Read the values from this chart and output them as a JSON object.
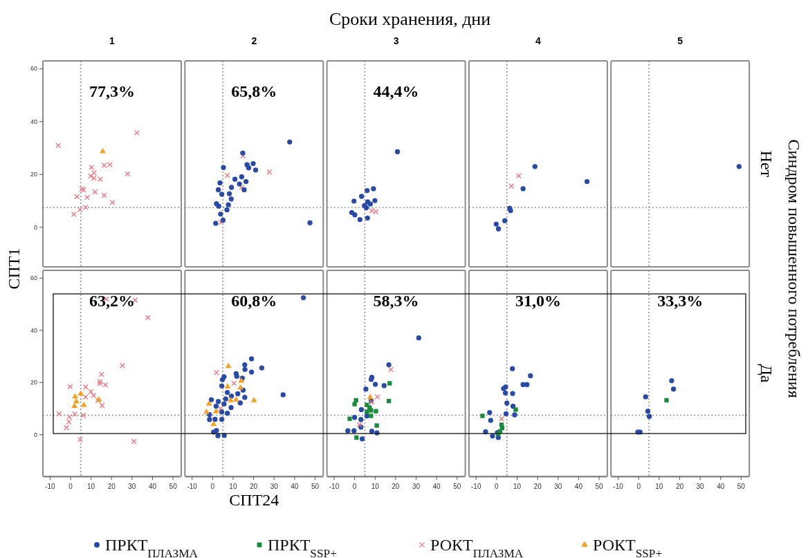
{
  "chart_data": [
    {
      "type": "scatter",
      "title": "1",
      "ylabel": "СПТ1",
      "annotations": [
        "77,3%"
      ],
      "xlim": [
        -13.5,
        54
      ],
      "ylim": [
        -15,
        63
      ],
      "yticks": [
        0,
        20,
        40,
        60
      ],
      "tick_labels": "y",
      "ref_lines": [
        {
          "axis": "x",
          "value": 5,
          "color": "#808080",
          "line_style": "dotted"
        },
        {
          "axis": "y",
          "value": 7.5,
          "color": "#808080",
          "line_style": "dotted"
        }
      ],
      "series": [
        {
          "color": "#f07880",
          "marker": "cross",
          "x": [
            -6,
            32.4,
            10.2,
            16.4,
            19.2,
            27.8,
            11.4,
            9.8,
            11.4,
            14.5,
            5.5,
            6.3,
            11.9,
            16.4,
            3.1,
            8.1,
            20.4,
            7.3,
            4.6,
            1.6
          ],
          "values": [
            31,
            35.8,
            22.7,
            23.4,
            23.7,
            20.2,
            20.6,
            19.4,
            18.6,
            18.2,
            14.5,
            14.2,
            13.4,
            12.1,
            11.6,
            11.3,
            9.4,
            7.5,
            6.7,
            4.9
          ]
        },
        {
          "color": "#f5a020",
          "marker": "triangle",
          "x": [
            15.7
          ],
          "values": [
            28.7
          ]
        }
      ]
    },
    {
      "type": "scatter",
      "title": "2",
      "annotations": [
        "65,8%"
      ],
      "xlim": [
        -13.5,
        54
      ],
      "ylim": [
        -15,
        63
      ],
      "tick_labels": false,
      "ref_lines": [
        {
          "axis": "x",
          "value": 5,
          "color": "#808080",
          "line_style": "dotted"
        },
        {
          "axis": "y",
          "value": 7.5,
          "color": "#808080",
          "line_style": "dotted"
        }
      ],
      "series": [
        {
          "color": "#f07880",
          "marker": "cross",
          "x": [
            27.7,
            7.2,
            14.2,
            4.1,
            14.9
          ],
          "values": [
            20.9,
            19.6,
            15.1,
            1.9,
            27
          ]
        },
        {
          "color": "#2a4aa8",
          "marker": "circle",
          "x": [
            37.6,
            47.5,
            14.7,
            5.3,
            16.8,
            19.8,
            17.6,
            21,
            10.9,
            14.2,
            16.3,
            13.1,
            15.4,
            3.6,
            2.8,
            4.5,
            9.2,
            8.2,
            9.1,
            1.9,
            3,
            7.7,
            7,
            3.9,
            5.1,
            1.5
          ],
          "values": [
            32.3,
            1.7,
            28.1,
            22.6,
            23.7,
            24.1,
            22.5,
            21.7,
            18.2,
            19.1,
            17.3,
            16.4,
            14.2,
            16.8,
            14.2,
            12.5,
            15.1,
            12.7,
            10.7,
            8.9,
            8,
            8.5,
            6.6,
            5,
            2.7,
            1.5
          ]
        }
      ]
    },
    {
      "type": "scatter",
      "title": "3",
      "subtitle": "Сроки хранения, дни",
      "annotations": [
        "44,4%"
      ],
      "xlim": [
        -13.5,
        54
      ],
      "ylim": [
        -15,
        63
      ],
      "tick_labels": false,
      "ref_lines": [
        {
          "axis": "x",
          "value": 5,
          "color": "#808080",
          "line_style": "dotted"
        },
        {
          "axis": "y",
          "value": 7.5,
          "color": "#808080",
          "line_style": "dotted"
        }
      ],
      "series": [
        {
          "color": "#f07880",
          "marker": "cross",
          "x": [
            8.4,
            10.4
          ],
          "values": [
            6.3,
            5.9
          ]
        },
        {
          "color": "#2a4aa8",
          "marker": "circle",
          "x": [
            20.9,
            9.2,
            6.1,
            3.4,
            -0.3,
            9.9,
            6.4,
            7.7,
            4.8,
            5.7,
            -1.4,
            0.1,
            2.6,
            6.3
          ],
          "values": [
            28.6,
            14.6,
            13.9,
            11.7,
            9.9,
            10.1,
            9.6,
            8.8,
            8.2,
            7.4,
            5.6,
            4.7,
            2.9,
            3.5
          ]
        }
      ]
    },
    {
      "type": "scatter",
      "title": "4",
      "xlim": [
        -13.5,
        54
      ],
      "ylim": [
        -15,
        63
      ],
      "tick_labels": false,
      "ref_lines": [
        {
          "axis": "x",
          "value": 5,
          "color": "#808080",
          "line_style": "dotted"
        },
        {
          "axis": "y",
          "value": 7.5,
          "color": "#808080",
          "line_style": "dotted"
        }
      ],
      "series": [
        {
          "color": "#f07880",
          "marker": "cross",
          "x": [
            10.8,
            7.2
          ],
          "values": [
            19.5,
            15.6
          ]
        },
        {
          "color": "#2a4aa8",
          "marker": "circle",
          "x": [
            18.7,
            44.1,
            12.9,
            6.4,
            6.8,
            4,
            -0.2,
            0.9
          ],
          "values": [
            23,
            17.3,
            14.6,
            7.2,
            6.3,
            2.5,
            1.2,
            -0.6
          ]
        }
      ]
    },
    {
      "type": "scatter",
      "title": "5",
      "y2label": "Нет",
      "xlim": [
        -13.5,
        54
      ],
      "ylim": [
        -15,
        63
      ],
      "tick_labels": false,
      "ref_lines": [
        {
          "axis": "x",
          "value": 5,
          "color": "#808080",
          "line_style": "dotted"
        },
        {
          "axis": "y",
          "value": 7.5,
          "color": "#808080",
          "line_style": "dotted"
        }
      ],
      "series": [
        {
          "color": "#2a4aa8",
          "marker": "circle",
          "x": [
            49
          ],
          "values": [
            23
          ]
        }
      ]
    },
    {
      "type": "scatter",
      "annotations": [
        "63,2%"
      ],
      "xlim": [
        -13.5,
        54
      ],
      "ylim": [
        -16,
        63
      ],
      "xticks": [
        -10,
        0,
        10,
        20,
        30,
        40,
        50
      ],
      "yticks": [
        0,
        20,
        40,
        60
      ],
      "ref_lines": [
        {
          "axis": "x",
          "value": 5,
          "color": "#808080",
          "line_style": "dotted"
        },
        {
          "axis": "y",
          "value": 7.5,
          "color": "#808080",
          "line_style": "dotted"
        }
      ],
      "series": [
        {
          "color": "#f07880",
          "marker": "cross",
          "x": [
            17.5,
            31.5,
            37.7,
            25.3,
            15.1,
            14.3,
            14.3,
            17,
            7.3,
            -0.2,
            9.9,
            11.2,
            13.4,
            15.4,
            -5.6,
            2,
            6.3,
            -0.6,
            -0.8,
            -2,
            4.7,
            30.9,
            7.3
          ],
          "values": [
            52,
            51.6,
            44.9,
            26.5,
            23.1,
            20.4,
            19.6,
            19.1,
            18.3,
            18.4,
            16.5,
            15,
            13.1,
            11.2,
            8,
            7.9,
            7.4,
            6.8,
            4.9,
            2.7,
            -1.9,
            -2.6,
            14.4
          ]
        },
        {
          "color": "#f5a020",
          "marker": "triangle",
          "x": [
            5,
            2.2,
            2.8,
            1.9,
            6.5,
            13.8
          ],
          "values": [
            15.7,
            14.6,
            12.7,
            10.9,
            11.3,
            13.4
          ]
        }
      ]
    },
    {
      "type": "scatter",
      "xlabel": "СПТ24",
      "annotations": [
        "60,8%"
      ],
      "xlim": [
        -13.5,
        54
      ],
      "ylim": [
        -16,
        63
      ],
      "xticks": [
        -10,
        0,
        10,
        20,
        30,
        40,
        50
      ],
      "tick_labels": "x",
      "ref_lines": [
        {
          "axis": "x",
          "value": 5,
          "color": "#808080",
          "line_style": "dotted"
        },
        {
          "axis": "y",
          "value": 7.5,
          "color": "#808080",
          "line_style": "dotted"
        }
      ],
      "series": [
        {
          "color": "#f07880",
          "marker": "cross",
          "x": [
            1.9,
            10.4,
            3.9
          ],
          "values": [
            23.8,
            19.7,
            10
          ]
        },
        {
          "color": "#2a4aa8",
          "marker": "circle",
          "x": [
            44.3,
            34.4,
            19,
            24,
            15.7,
            15.8,
            19,
            11.5,
            11.8,
            14.5,
            5.6,
            4.8,
            14.9,
            12.3,
            15.7,
            13.5,
            4.5,
            7.2,
            9.2,
            6.4,
            -0.6,
            2.8,
            5.6,
            9,
            1.7,
            4.5,
            7.2,
            -1.5,
            -1.5,
            1.2,
            4.5,
            0.5,
            1.9,
            2.6,
            5.7
          ],
          "values": [
            52.5,
            15.3,
            29.1,
            25.6,
            26.8,
            25,
            24,
            23.4,
            22.4,
            21.7,
            22.2,
            21.1,
            17.1,
            15.7,
            14.3,
            12.2,
            18.7,
            16.2,
            14.8,
            13.7,
            13.4,
            12.7,
            11.8,
            10.4,
            10.9,
            8.7,
            8.2,
            7.7,
            5.8,
            5.9,
            5.9,
            1,
            1.6,
            -0.4,
            -0.3
          ]
        },
        {
          "color": "#f5a020",
          "marker": "triangle",
          "x": [
            7.7,
            7.3,
            14,
            13.6,
            20.2,
            11.5,
            8.8,
            -1.7,
            -3,
            1.7,
            0.5
          ],
          "values": [
            26.2,
            18.4,
            20.6,
            18,
            13.1,
            13.4,
            13.1,
            11.8,
            8.7,
            8.9,
            4
          ]
        }
      ]
    },
    {
      "type": "scatter",
      "annotations": [
        "58,3%"
      ],
      "legend": "bottom",
      "xlim": [
        -13.5,
        54
      ],
      "ylim": [
        -16,
        63
      ],
      "xticks": [
        -10,
        0,
        10,
        20,
        30,
        40,
        50
      ],
      "tick_labels": "x",
      "ref_lines": [
        {
          "axis": "x",
          "value": 5,
          "color": "#808080",
          "line_style": "dotted"
        },
        {
          "axis": "y",
          "value": 7.5,
          "color": "#808080",
          "line_style": "dotted"
        }
      ],
      "series": [
        {
          "name": "ПРКТ$_{ПЛАЗМА}$",
          "color": "#2a4aa8",
          "marker": "circle",
          "x": [
            31.3,
            16.7,
            8.4,
            8.1,
            10.1,
            14.4,
            5.5,
            8.1,
            3.3,
            0,
            3.1,
            3.1,
            -3.3,
            -0.3,
            8.4,
            10.9,
            3.7,
            6
          ],
          "values": [
            37.1,
            26.8,
            22,
            21.2,
            19.3,
            18.8,
            17.5,
            13,
            9.6,
            6.6,
            5.8,
            2.9,
            1.5,
            1.5,
            1.3,
            0.7,
            -1.6,
            7.2
          ]
        },
        {
          "name": "ПРКТ$_{SSP+}$",
          "color": "#1a8a3c",
          "marker": "square",
          "x": [
            17.1,
            16.7,
            0.7,
            0,
            6,
            7.3,
            8,
            6,
            10.4,
            8,
            -2.4,
            10.8,
            0.9
          ],
          "values": [
            19.7,
            12.9,
            13.2,
            11.7,
            11.4,
            10.4,
            9.3,
            8.8,
            9,
            7.2,
            6.1,
            3.5,
            -1.1
          ]
        },
        {
          "name": "РОКТ$_{ПЛАЗМА}$",
          "color": "#f07880",
          "marker": "cross",
          "x": [
            11.1,
            17.7,
            2.4,
            8.3
          ],
          "values": [
            14.5,
            25,
            3.8,
            12.5
          ]
        },
        {
          "name": "РОКТ$_{SSP+}$",
          "color": "#f5a020",
          "marker": "triangle",
          "x": [
            7.6
          ],
          "values": [
            14.3
          ]
        }
      ]
    },
    {
      "type": "scatter",
      "annotations": [
        "31,0%"
      ],
      "xlim": [
        -13.5,
        54
      ],
      "ylim": [
        -16,
        63
      ],
      "xticks": [
        -10,
        0,
        10,
        20,
        30,
        40,
        50
      ],
      "tick_labels": "x",
      "ref_lines": [
        {
          "axis": "x",
          "value": 5,
          "color": "#808080",
          "line_style": "dotted"
        },
        {
          "axis": "y",
          "value": 7.5,
          "color": "#808080",
          "line_style": "dotted"
        }
      ],
      "series": [
        {
          "color": "#2a4aa8",
          "marker": "circle",
          "x": [
            7.7,
            16.5,
            12.9,
            14.8,
            3.4,
            4.4,
            4.3,
            7.8,
            5,
            8,
            4.6,
            8.8,
            -3.4,
            -2.9,
            -5.4,
            -2,
            0.8,
            0.4
          ],
          "values": [
            25.3,
            22.6,
            19.2,
            19.2,
            17.7,
            18.3,
            16,
            15.8,
            12.1,
            10.9,
            8,
            7.6,
            8.5,
            5.5,
            1.1,
            -0.5,
            -1.1,
            0.8
          ]
        },
        {
          "color": "#1a8a3c",
          "marker": "square",
          "x": [
            -6.9,
            9.3,
            2.4,
            2.7,
            1.7,
            0.8
          ],
          "values": [
            7.2,
            9.6,
            3.8,
            2.6,
            1.3,
            0.3
          ]
        },
        {
          "color": "#f07880",
          "marker": "cross",
          "x": [
            2.4
          ],
          "values": [
            6.1
          ]
        }
      ]
    },
    {
      "type": "scatter",
      "y2label": "Да",
      "annotations": [
        "33,3%",
        "Синдром повышенного потребления"
      ],
      "xlim": [
        -13.5,
        54
      ],
      "ylim": [
        -16,
        63
      ],
      "xticks": [
        -10,
        0,
        10,
        20,
        30,
        40,
        50
      ],
      "tick_labels": "x",
      "ref_lines": [
        {
          "axis": "x",
          "value": 5,
          "color": "#808080",
          "line_style": "dotted"
        },
        {
          "axis": "y",
          "value": 7.5,
          "color": "#808080",
          "line_style": "dotted"
        }
      ],
      "series": [
        {
          "color": "#2a4aa8",
          "marker": "circle",
          "x": [
            16.1,
            17,
            3.4,
            4.5,
            5.2,
            -0.4,
            0.7
          ],
          "values": [
            20.7,
            17.5,
            14.5,
            9,
            7,
            1,
            1
          ]
        },
        {
          "color": "#1a8a3c",
          "marker": "square",
          "x": [
            13.6
          ],
          "values": [
            13.2
          ]
        }
      ]
    }
  ]
}
